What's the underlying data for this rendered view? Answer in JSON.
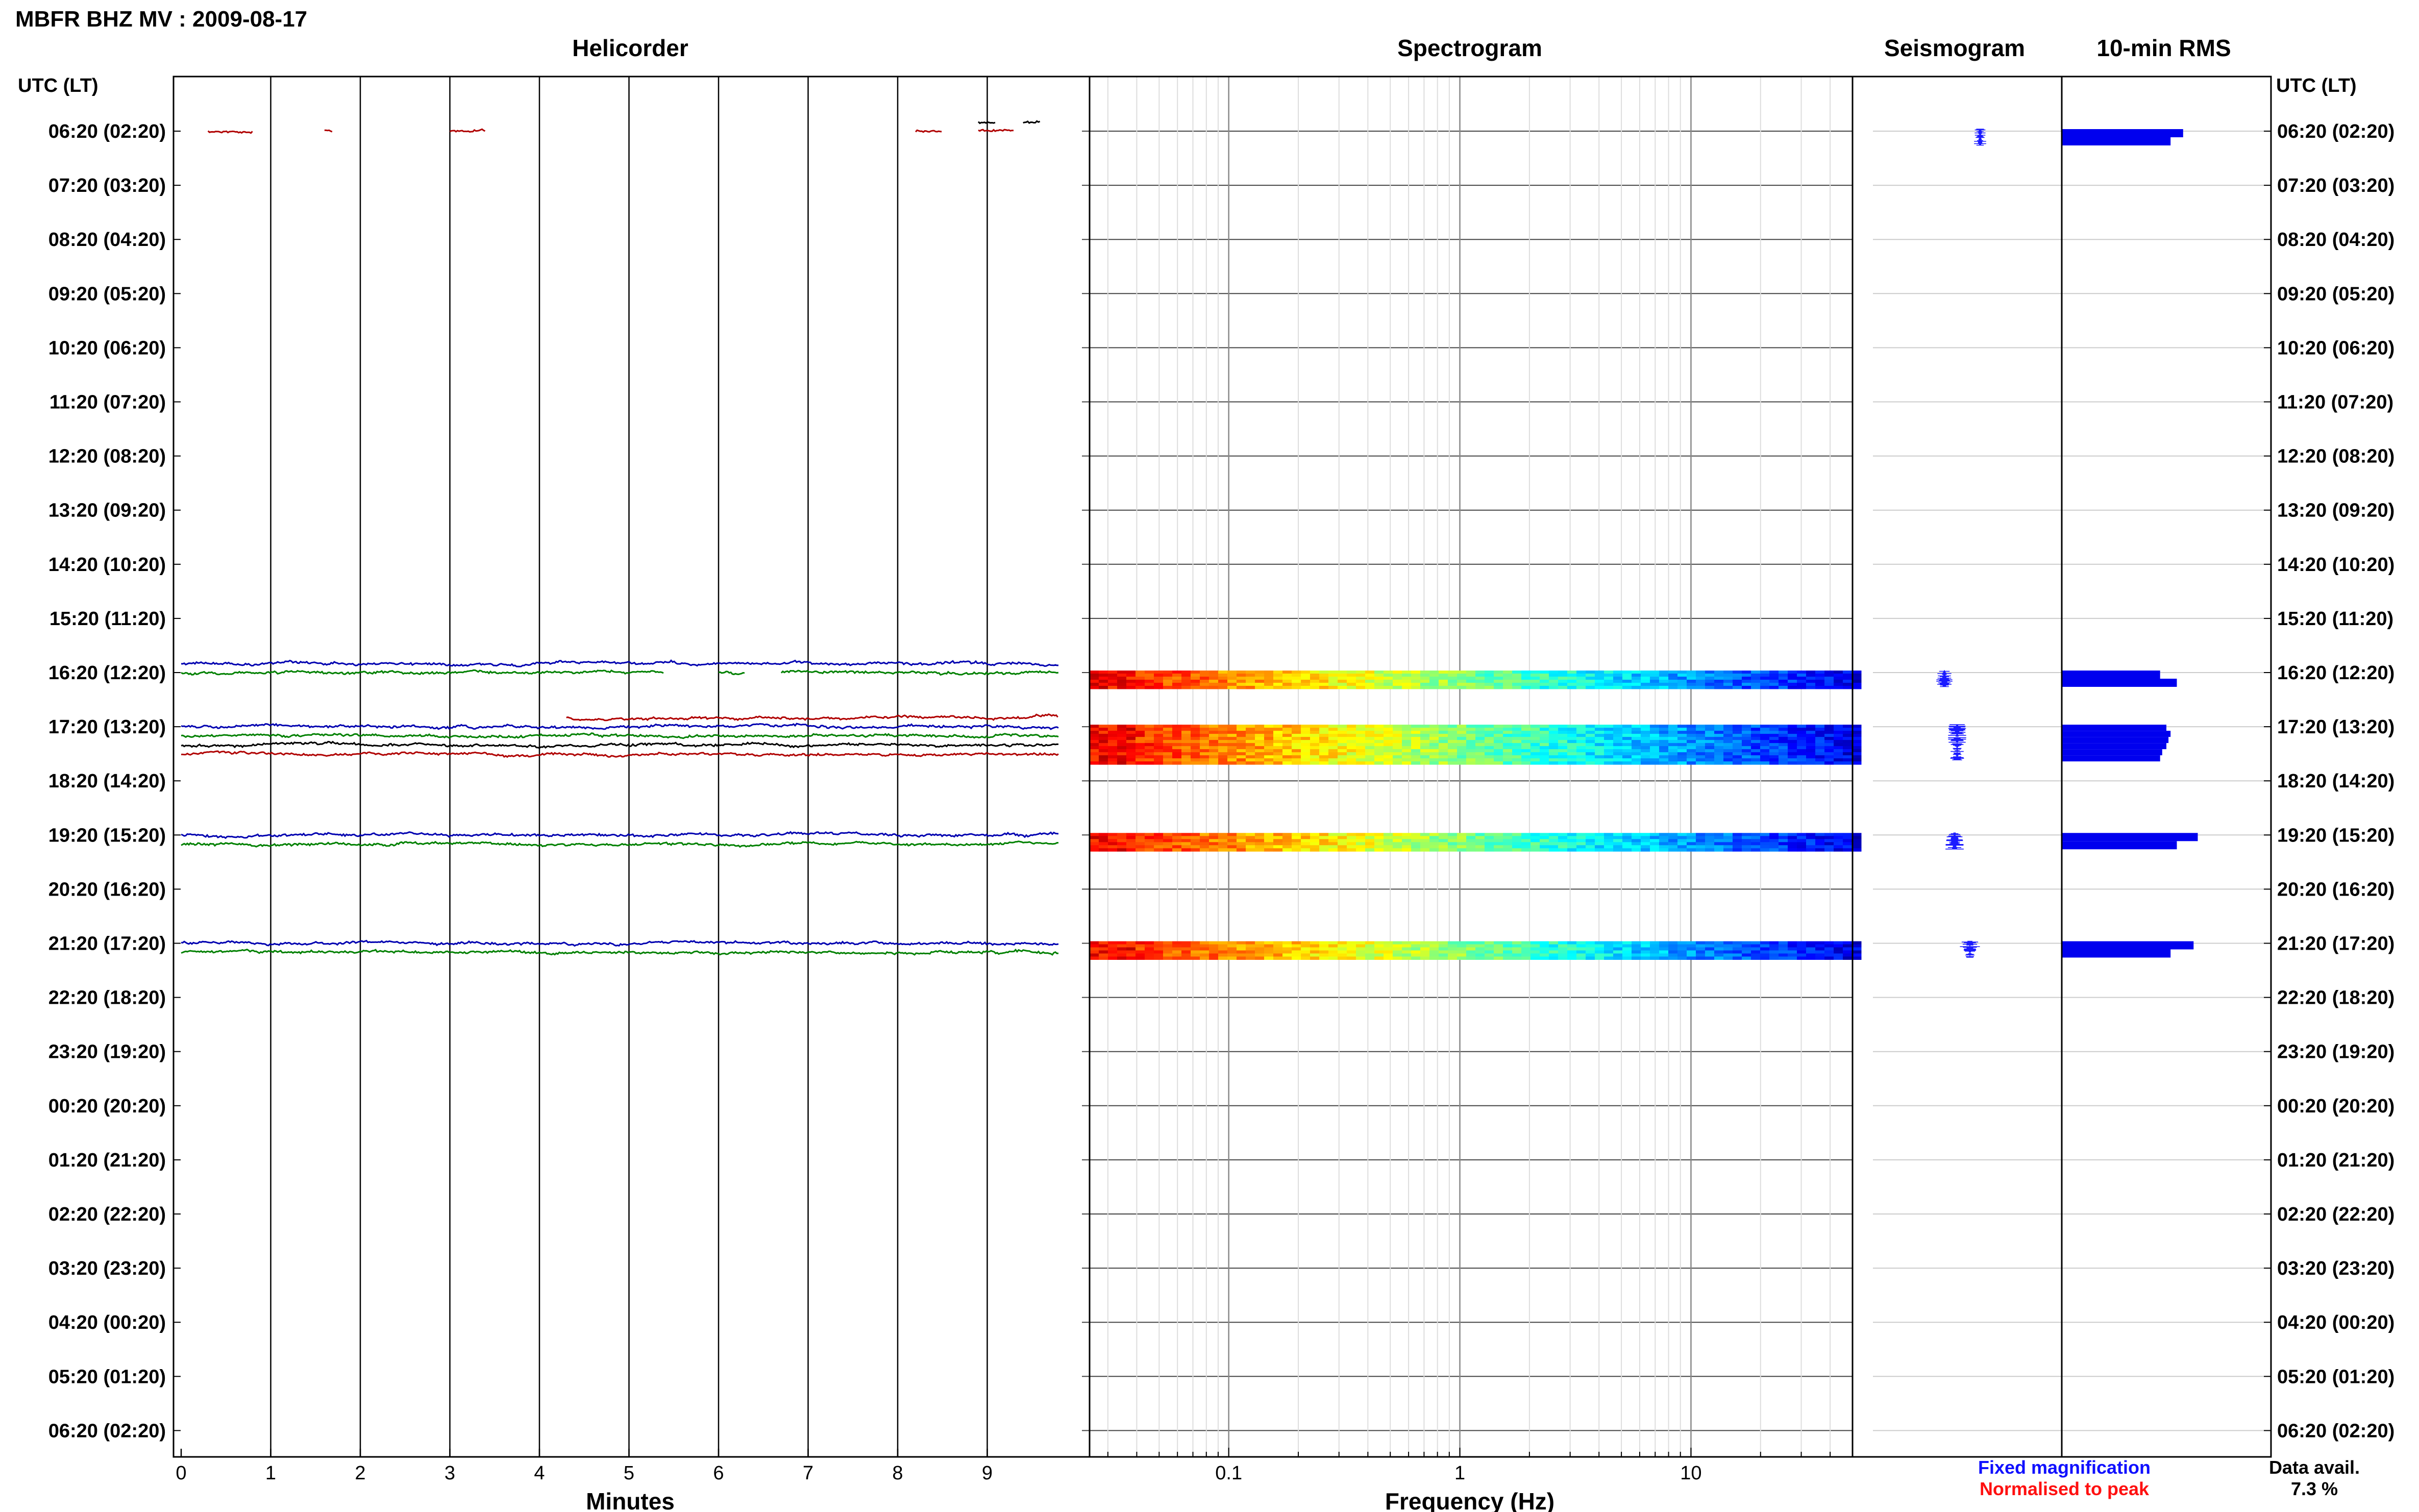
{
  "header": {
    "station_title": "MBFR BHZ MV : 2009-08-17",
    "axis_header": "UTC (LT)"
  },
  "panels": {
    "helicorder": "Helicorder",
    "spectrogram": "Spectrogram",
    "seismogram": "Seismogram",
    "rms": "10-min RMS"
  },
  "row_labels": [
    "06:20 (02:20)",
    "07:20 (03:20)",
    "08:20 (04:20)",
    "09:20 (05:20)",
    "10:20 (06:20)",
    "11:20 (07:20)",
    "12:20 (08:20)",
    "13:20 (09:20)",
    "14:20 (10:20)",
    "15:20 (11:20)",
    "16:20 (12:20)",
    "17:20 (13:20)",
    "18:20 (14:20)",
    "19:20 (15:20)",
    "20:20 (16:20)",
    "21:20 (17:20)",
    "22:20 (18:20)",
    "23:20 (19:20)",
    "00:20 (20:20)",
    "01:20 (21:20)",
    "02:20 (22:20)",
    "03:20 (23:20)",
    "04:20 (00:20)",
    "05:20 (01:20)",
    "06:20 (02:20)"
  ],
  "x_axes": {
    "helicorder_xlabel": "Minutes",
    "helicorder_ticks": [
      "0",
      "1",
      "2",
      "3",
      "4",
      "5",
      "6",
      "7",
      "8",
      "9"
    ],
    "spectrogram_xlabel": "Frequency (Hz)",
    "spectrogram_ticks": [
      "0.1",
      "1",
      "10"
    ]
  },
  "legend": {
    "fixed": "Fixed magnification",
    "normalised": "Normalised to peak",
    "fixed_color": "#1010ff",
    "normalised_color": "#ff1010"
  },
  "availability": {
    "label": "Data avail.",
    "value": "7.3 %"
  },
  "chart_data": [
    {
      "type": "line",
      "title": "Helicorder",
      "xlabel": "Minutes",
      "xlim": [
        0,
        10
      ],
      "hour_rows_with_data": [
        "06:20 (02:20)",
        "16:20 (12:20)",
        "17:20 (13:20)",
        "19:20 (15:20)",
        "21:20 (17:20)"
      ],
      "trace_colors": [
        "#000000",
        "#b00000",
        "#0000b0",
        "#008000"
      ],
      "traces": [
        {
          "row": 0,
          "offset": 0,
          "color": "#b00000",
          "segments": [
            [
              0.3,
              0.8
            ],
            [
              1.6,
              1.7
            ],
            [
              3.0,
              3.4
            ],
            [
              8.2,
              8.5
            ],
            [
              8.9,
              9.3
            ]
          ]
        },
        {
          "row": 0,
          "offset": -1,
          "color": "#000000",
          "segments": [
            [
              8.9,
              9.1
            ],
            [
              9.4,
              9.6
            ]
          ]
        },
        {
          "row": 10,
          "offset": -1,
          "color": "#0000b0",
          "segments": [
            [
              0,
              9.8
            ]
          ]
        },
        {
          "row": 10,
          "offset": 0,
          "color": "#008000",
          "segments": [
            [
              0,
              5.4
            ],
            [
              6.0,
              6.3
            ],
            [
              6.7,
              9.8
            ]
          ]
        },
        {
          "row": 11,
          "offset": -1,
          "color": "#b00000",
          "segments": [
            [
              4.3,
              9.8
            ]
          ]
        },
        {
          "row": 11,
          "offset": 0,
          "color": "#0000b0",
          "segments": [
            [
              0,
              9.8
            ]
          ]
        },
        {
          "row": 11,
          "offset": 1,
          "color": "#008000",
          "segments": [
            [
              0,
              9.8
            ]
          ]
        },
        {
          "row": 11,
          "offset": 2,
          "color": "#000000",
          "segments": [
            [
              0,
              9.8
            ]
          ]
        },
        {
          "row": 11,
          "offset": 3,
          "color": "#b00000",
          "segments": [
            [
              0,
              9.8
            ]
          ]
        },
        {
          "row": 13,
          "offset": 0,
          "color": "#0000b0",
          "segments": [
            [
              0,
              9.8
            ]
          ]
        },
        {
          "row": 13,
          "offset": 1,
          "color": "#008000",
          "segments": [
            [
              0,
              9.8
            ]
          ]
        },
        {
          "row": 15,
          "offset": 0,
          "color": "#0000b0",
          "segments": [
            [
              0,
              9.8
            ]
          ]
        },
        {
          "row": 15,
          "offset": 1,
          "color": "#008000",
          "segments": [
            [
              0,
              9.8
            ]
          ]
        }
      ]
    },
    {
      "type": "heatmap",
      "title": "Spectrogram",
      "xlabel": "Frequency (Hz)",
      "xscale": "log",
      "xlim": [
        0.025,
        50
      ],
      "colormap": "jet",
      "bands": [
        {
          "row": 10,
          "rows_span": 0.3
        },
        {
          "row": 11,
          "rows_span": 0.7
        },
        {
          "row": 13,
          "rows_span": 0.3
        },
        {
          "row": 15,
          "rows_span": 0.3
        }
      ]
    },
    {
      "type": "scatter",
      "title": "Seismogram",
      "legend": [
        "Fixed magnification",
        "Normalised to peak"
      ],
      "bursts": [
        {
          "row": 0,
          "amplitude": 0.06
        },
        {
          "row": 10,
          "amplitude": 0.08
        },
        {
          "row": 11,
          "amplitude": 0.09
        },
        {
          "row": 13,
          "amplitude": 0.09
        },
        {
          "row": 15,
          "amplitude": 0.1
        }
      ]
    },
    {
      "type": "bar",
      "title": "10-min RMS",
      "orientation": "horizontal",
      "xlim": [
        0,
        1
      ],
      "bars": [
        {
          "row": 0,
          "values": [
            0.58,
            0.52
          ]
        },
        {
          "row": 10,
          "values": [
            0.47,
            0.55
          ]
        },
        {
          "row": 11,
          "values": [
            0.5,
            0.52,
            0.51,
            0.5,
            0.48,
            0.47
          ]
        },
        {
          "row": 13,
          "values": [
            0.65,
            0.55
          ]
        },
        {
          "row": 15,
          "values": [
            0.63,
            0.52
          ]
        }
      ]
    }
  ]
}
